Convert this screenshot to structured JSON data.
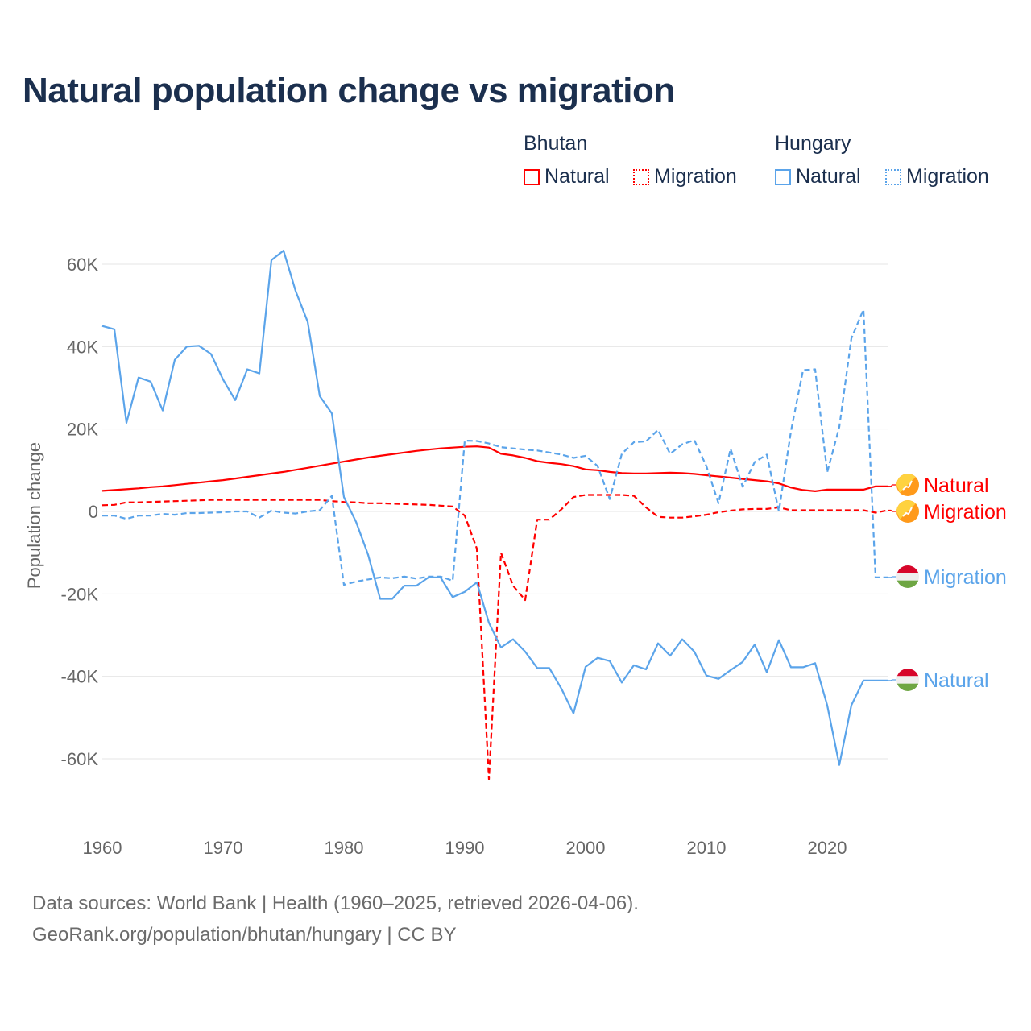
{
  "title": "Natural population change vs migration",
  "legend": {
    "groups": [
      {
        "country": "Bhutan",
        "items": [
          {
            "label": "Natural",
            "style": "solid"
          },
          {
            "label": "Migration",
            "style": "dotted"
          }
        ],
        "color": "#ff0000"
      },
      {
        "country": "Hungary",
        "items": [
          {
            "label": "Natural",
            "style": "solid"
          },
          {
            "label": "Migration",
            "style": "dotted"
          }
        ],
        "color": "#5ba4ea"
      }
    ]
  },
  "footer": {
    "line1": "Data sources: World Bank | Health (1960–2025, retrieved 2026-04-06).",
    "line2": "GeoRank.org/population/bhutan/hungary | CC BY"
  },
  "chart_data": {
    "type": "line",
    "title": "Natural population change vs migration",
    "xlabel": "",
    "ylabel": "Population change",
    "xlim": [
      1960,
      2025
    ],
    "ylim": [
      -70000,
      70000
    ],
    "x_ticks": [
      1960,
      1970,
      1980,
      1990,
      2000,
      2010,
      2020
    ],
    "y_ticks": [
      {
        "value": 60000,
        "label": "60K"
      },
      {
        "value": 40000,
        "label": "40K"
      },
      {
        "value": 20000,
        "label": "20K"
      },
      {
        "value": 0,
        "label": "0"
      },
      {
        "value": -20000,
        "label": "-20K"
      },
      {
        "value": -40000,
        "label": "-40K"
      },
      {
        "value": -60000,
        "label": "-60K"
      }
    ],
    "grid": true,
    "x_start": 1960,
    "series": [
      {
        "name": "Bhutan Natural",
        "end_label": "Natural",
        "flag": "bhutan",
        "color": "#ff0000",
        "dash": "solid",
        "values_k": [
          5,
          5.2,
          5.4,
          5.6,
          5.9,
          6.1,
          6.4,
          6.7,
          7,
          7.3,
          7.6,
          8,
          8.4,
          8.8,
          9.2,
          9.6,
          10.1,
          10.6,
          11.1,
          11.6,
          12.1,
          12.6,
          13.1,
          13.5,
          13.9,
          14.3,
          14.7,
          15,
          15.3,
          15.5,
          15.7,
          15.8,
          15.5,
          14,
          13.6,
          13,
          12.2,
          11.8,
          11.5,
          11,
          10.2,
          10,
          9.6,
          9.3,
          9.2,
          9.2,
          9.3,
          9.4,
          9.3,
          9.1,
          8.8,
          8.5,
          8.2,
          7.9,
          7.6,
          7.3,
          6.8,
          5.8,
          5.2,
          4.9,
          5.3,
          5.3,
          5.3,
          5.3,
          6.1,
          6.1
        ]
      },
      {
        "name": "Bhutan Migration",
        "end_label": "Migration",
        "flag": "bhutan",
        "color": "#ff0000",
        "dash": "dashed",
        "values_k": [
          1.5,
          1.6,
          2.2,
          2.2,
          2.3,
          2.4,
          2.5,
          2.6,
          2.7,
          2.8,
          2.8,
          2.8,
          2.8,
          2.8,
          2.8,
          2.8,
          2.8,
          2.8,
          2.8,
          2.5,
          2.3,
          2.2,
          2,
          2,
          1.9,
          1.8,
          1.7,
          1.6,
          1.4,
          1.2,
          -1,
          -9,
          -65,
          -10,
          -18,
          -21.5,
          -2,
          -2,
          0.5,
          3.5,
          4,
          4,
          4,
          4,
          3.8,
          1,
          -1.3,
          -1.5,
          -1.5,
          -1.2,
          -0.8,
          -0.2,
          0.2,
          0.5,
          0.6,
          0.6,
          1,
          0.3,
          0.3,
          0.3,
          0.3,
          0.3,
          0.3,
          0.3,
          -0.3,
          0.3
        ]
      },
      {
        "name": "Hungary Migration",
        "end_label": "Migration",
        "flag": "hungary",
        "color": "#5ba4ea",
        "dash": "dashed",
        "values_k": [
          -1,
          -1,
          -1.8,
          -1,
          -1,
          -0.6,
          -0.8,
          -0.4,
          -0.4,
          -0.3,
          -0.2,
          0,
          0,
          -1.5,
          0.2,
          -0.3,
          -0.5,
          0,
          0.3,
          3.8,
          -17.8,
          -17,
          -16.5,
          -16,
          -16.2,
          -15.8,
          -16.3,
          -15.8,
          -15.8,
          -16.8,
          17.2,
          17.1,
          16.5,
          15.6,
          15.3,
          15,
          14.8,
          14.3,
          13.8,
          13,
          13.5,
          11,
          3,
          14,
          16.8,
          17,
          19.8,
          14,
          16.3,
          17.3,
          11,
          2,
          15.2,
          6,
          12,
          13.8,
          0,
          19.5,
          34.3,
          34.5,
          9.5,
          20.5,
          42,
          49,
          -16,
          -16
        ]
      },
      {
        "name": "Hungary Natural",
        "end_label": "Natural",
        "flag": "hungary",
        "color": "#5ba4ea",
        "dash": "solid",
        "values_k": [
          45,
          44.2,
          21.5,
          32.5,
          31.5,
          24.5,
          36.8,
          40,
          40.2,
          38.2,
          32,
          27,
          34.5,
          33.5,
          61,
          63.3,
          53.5,
          46,
          28,
          23.8,
          3.5,
          -2.5,
          -10.5,
          -21.2,
          -21.2,
          -18,
          -18,
          -16,
          -16,
          -20.8,
          -19.5,
          -17.2,
          -27,
          -33,
          -31,
          -34,
          -38,
          -38,
          -43,
          -49,
          -37.7,
          -35.5,
          -36.3,
          -41.5,
          -37.3,
          -38.3,
          -32,
          -35,
          -31,
          -34,
          -39.8,
          -40.6,
          -38.5,
          -36.5,
          -32.3,
          -39,
          -31.2,
          -37.8,
          -37.8,
          -36.8,
          -47,
          -61.5,
          -47,
          -41,
          -41,
          -41
        ]
      }
    ]
  }
}
